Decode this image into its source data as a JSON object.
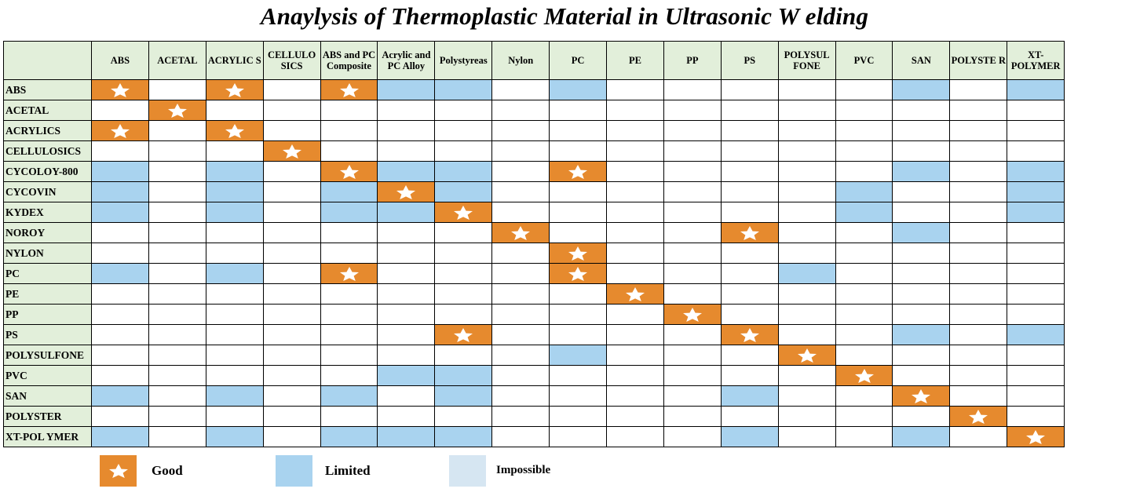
{
  "title": "Anaylysis of Thermoplastic Material in Ultrasonic W elding",
  "colors": {
    "good": "#e68a2e",
    "limited": "#a9d3ef",
    "impossible": "#d6e6f2",
    "header_bg": "#e2efda"
  },
  "columns": [
    "ABS",
    "ACETAL",
    "ACRYLIC S",
    "CELLULO SICS",
    "ABS and PC Composite",
    "Acrylic and PC Alloy",
    "Polystyreas",
    "Nylon",
    "PC",
    "PE",
    "PP",
    "PS",
    "POLYSUL FONE",
    "PVC",
    "SAN",
    "POLYSTE R",
    "XT-POLYMER"
  ],
  "rows": [
    {
      "label": "ABS",
      "cells": [
        "G",
        "",
        "G",
        "",
        "G",
        "L",
        "L",
        "",
        "L",
        "",
        "",
        "",
        "",
        "",
        "L",
        "",
        "L"
      ]
    },
    {
      "label": "ACETAL",
      "cells": [
        "",
        "G",
        "",
        "",
        "",
        "",
        "",
        "",
        "",
        "",
        "",
        "",
        "",
        "",
        "",
        "",
        ""
      ]
    },
    {
      "label": "ACRYLICS",
      "cells": [
        "G",
        "",
        "G",
        "",
        "",
        "",
        "",
        "",
        "",
        "",
        "",
        "",
        "",
        "",
        "",
        "",
        ""
      ]
    },
    {
      "label": "CELLULOSICS",
      "cells": [
        "",
        "",
        "",
        "G",
        "",
        "",
        "",
        "",
        "",
        "",
        "",
        "",
        "",
        "",
        "",
        "",
        ""
      ]
    },
    {
      "label": "CYCOLOY-800",
      "cells": [
        "L",
        "",
        "L",
        "",
        "G",
        "L",
        "L",
        "",
        "G",
        "",
        "",
        "",
        "",
        "",
        "L",
        "",
        "L"
      ]
    },
    {
      "label": "CYCOVIN",
      "cells": [
        "L",
        "",
        "L",
        "",
        "L",
        "G",
        "L",
        "",
        "",
        "",
        "",
        "",
        "",
        "L",
        "",
        "",
        "L"
      ]
    },
    {
      "label": "KYDEX",
      "cells": [
        "L",
        "",
        "L",
        "",
        "L",
        "L",
        "G",
        "",
        "",
        "",
        "",
        "",
        "",
        "L",
        "",
        "",
        "L"
      ]
    },
    {
      "label": "NOROY",
      "cells": [
        "",
        "",
        "",
        "",
        "",
        "",
        "",
        "G",
        "",
        "",
        "",
        "G",
        "",
        "",
        "L",
        "",
        ""
      ]
    },
    {
      "label": "NYLON",
      "cells": [
        "",
        "",
        "",
        "",
        "",
        "",
        "",
        "",
        "G",
        "",
        "",
        "",
        "",
        "",
        "",
        "",
        ""
      ]
    },
    {
      "label": "PC",
      "cells": [
        "L",
        "",
        "L",
        "",
        "G",
        "",
        "",
        "",
        "G",
        "",
        "",
        "",
        "L",
        "",
        "",
        "",
        ""
      ]
    },
    {
      "label": "PE",
      "cells": [
        "",
        "",
        "",
        "",
        "",
        "",
        "",
        "",
        "",
        "G",
        "",
        "",
        "",
        "",
        "",
        "",
        ""
      ]
    },
    {
      "label": "PP",
      "cells": [
        "",
        "",
        "",
        "",
        "",
        "",
        "",
        "",
        "",
        "",
        "G",
        "",
        "",
        "",
        "",
        "",
        ""
      ]
    },
    {
      "label": "PS",
      "cells": [
        "",
        "",
        "",
        "",
        "",
        "",
        "G",
        "",
        "",
        "",
        "",
        "G",
        "",
        "",
        "L",
        "",
        "L"
      ]
    },
    {
      "label": "POLYSULFONE",
      "cells": [
        "",
        "",
        "",
        "",
        "",
        "",
        "",
        "",
        "L",
        "",
        "",
        "",
        "G",
        "",
        "",
        "",
        ""
      ]
    },
    {
      "label": "PVC",
      "cells": [
        "",
        "",
        "",
        "",
        "",
        "L",
        "L",
        "",
        "",
        "",
        "",
        "",
        "",
        "G",
        "",
        "",
        ""
      ]
    },
    {
      "label": "SAN",
      "cells": [
        "L",
        "",
        "L",
        "",
        "L",
        "",
        "L",
        "",
        "",
        "",
        "",
        "L",
        "",
        "",
        "G",
        "",
        ""
      ]
    },
    {
      "label": "POLYSTER",
      "cells": [
        "",
        "",
        "",
        "",
        "",
        "",
        "",
        "",
        "",
        "",
        "",
        "",
        "",
        "",
        "",
        "G",
        ""
      ]
    },
    {
      "label": "XT-POL YMER",
      "cells": [
        "L",
        "",
        "L",
        "",
        "L",
        "L",
        "L",
        "",
        "",
        "",
        "",
        "L",
        "",
        "",
        "L",
        "",
        "G"
      ]
    }
  ],
  "legend": {
    "good": "Good",
    "limited": "Limited",
    "impossible": "Impossible"
  },
  "icons": {
    "good": "star-icon"
  }
}
